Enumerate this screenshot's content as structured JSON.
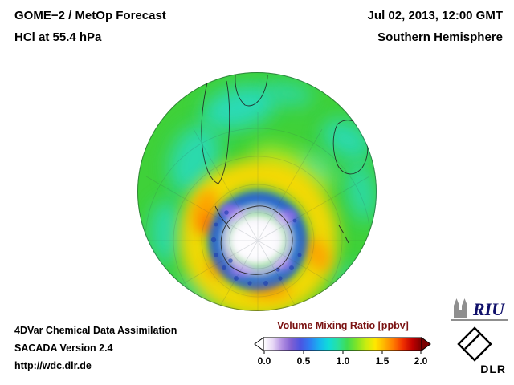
{
  "header": {
    "product": "GOME−2 / MetOp Forecast",
    "species": "HCl at 55.4 hPa",
    "datetime": "Jul 02, 2013, 12:00 GMT",
    "region": "Southern Hemisphere"
  },
  "map": {
    "projection": "orthographic southern hemisphere",
    "center_feature": "Antarctica",
    "field": "HCl volume mixing ratio"
  },
  "colorbar": {
    "title": "Volume Mixing Ratio [ppbv]",
    "title_color": "#7a1212",
    "min": 0.0,
    "max": 2.0,
    "ticks": [
      "0.0",
      "0.5",
      "1.0",
      "1.5",
      "2.0"
    ],
    "gradient": [
      "#ffffff",
      "#e8d9f6",
      "#b28fe2",
      "#7f5fd2",
      "#4a55e2",
      "#2e7df2",
      "#18b4f0",
      "#10dcd8",
      "#28e0a0",
      "#3fdc50",
      "#7fe428",
      "#c8ec10",
      "#ffe800",
      "#ffb400",
      "#ff7800",
      "#f03000",
      "#c00000",
      "#7a0000"
    ]
  },
  "footer": {
    "line1": "4DVar Chemical Data Assimilation",
    "line2": "SACADA Version 2.4",
    "line3": "http://wdc.dlr.de"
  },
  "logos": {
    "riu_text": "RIU",
    "dlr_text": "DLR"
  }
}
